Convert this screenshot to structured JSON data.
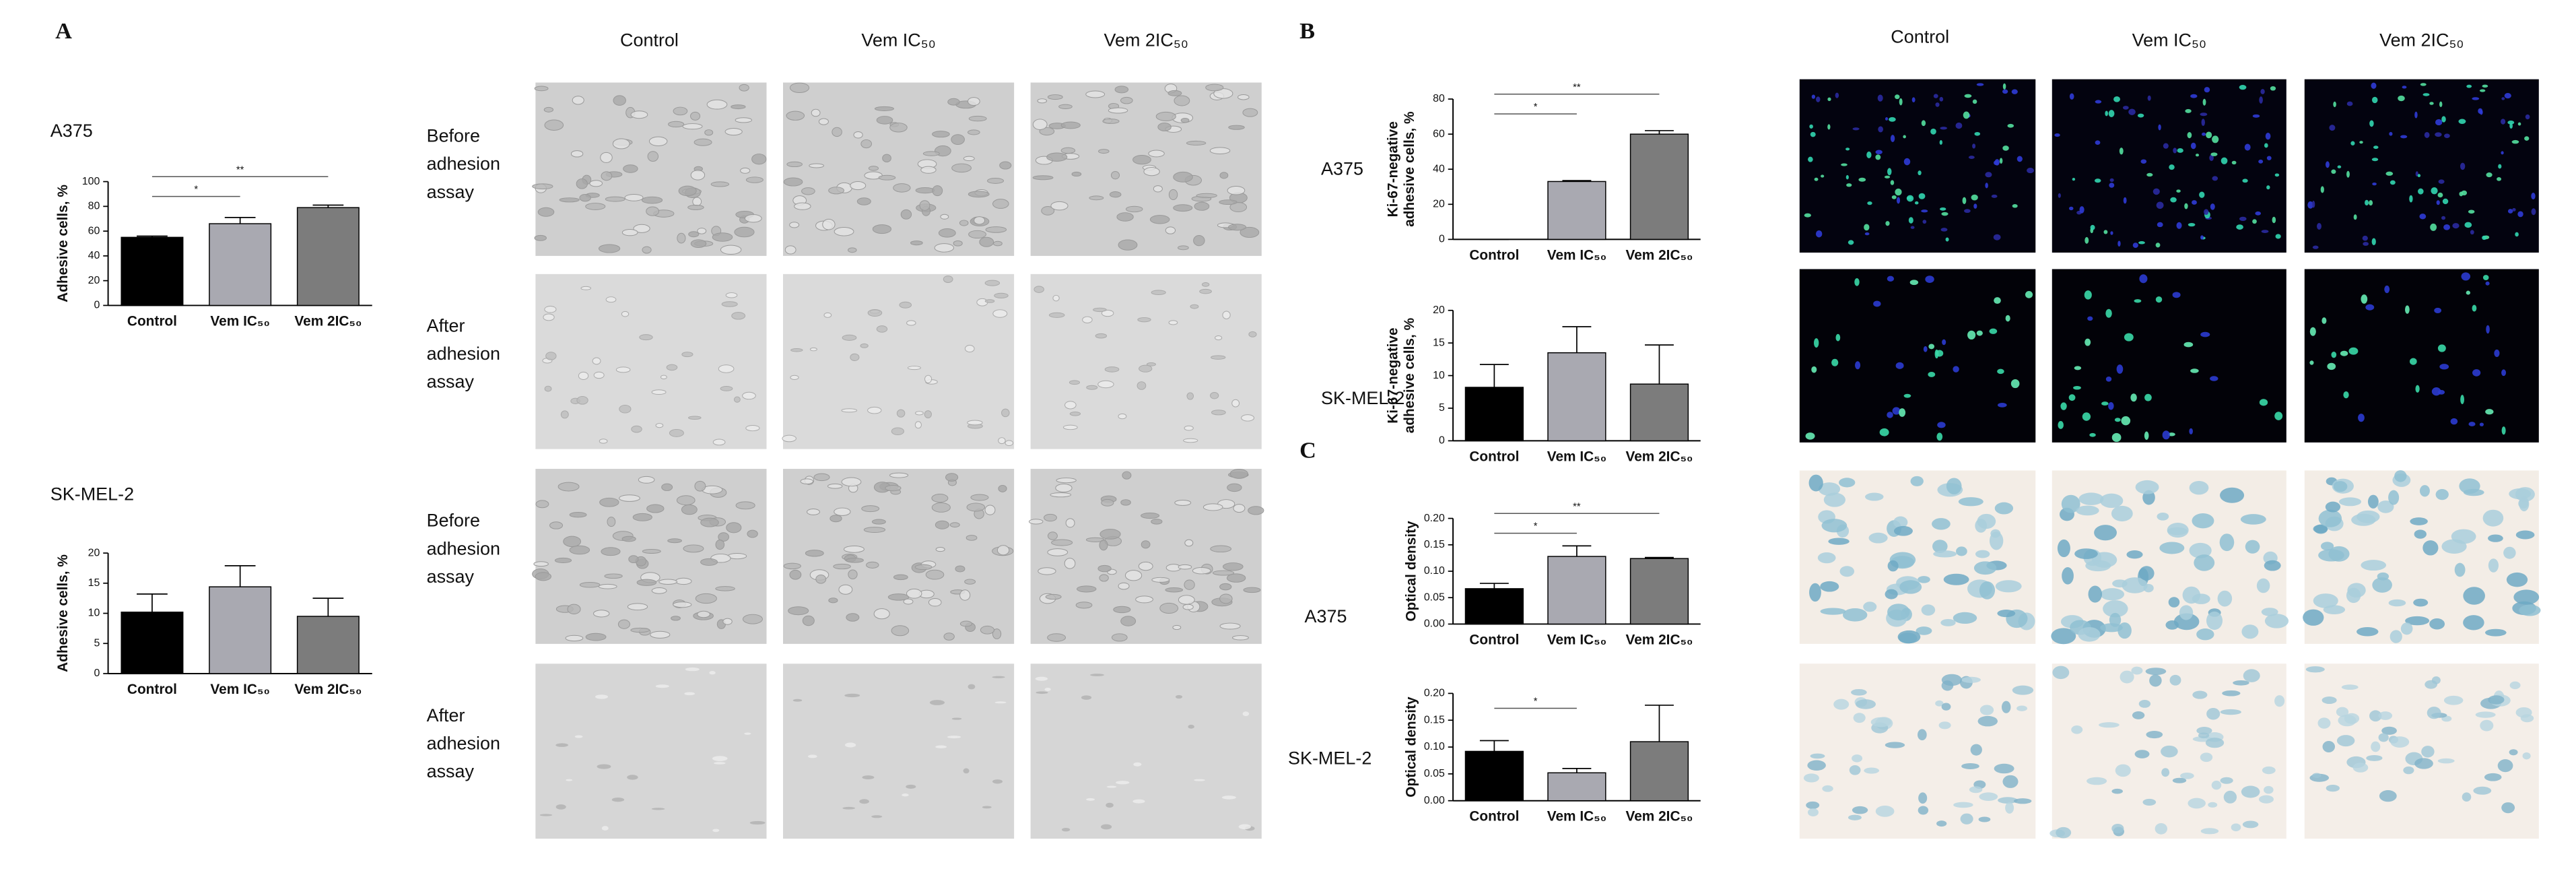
{
  "panel_letters": [
    "A",
    "B",
    "C"
  ],
  "column_headers": {
    "A": [
      "Control",
      "Vem IC₅₀",
      "Vem 2IC₅₀"
    ],
    "B": [
      "Control",
      "Vem IC₅₀",
      "Vem 2IC₅₀"
    ]
  },
  "image_row_labels": [
    [
      "Before",
      "adhesion",
      "assay"
    ],
    [
      "After",
      "adhesion",
      "assay"
    ],
    [
      "Before",
      "adhesion",
      "assay"
    ],
    [
      "After",
      "adhesion",
      "assay"
    ]
  ],
  "chart_data": [
    {
      "type": "bar",
      "title": "A375",
      "ylabel": [
        "Adhesive cells, %"
      ],
      "categories": [
        "Control",
        "Vem IC₅₀",
        "Vem 2IC₅₀"
      ],
      "values": [
        55,
        66,
        79
      ],
      "errors": [
        1,
        5,
        2
      ],
      "colors": [
        "#000000",
        "#a9a9b1",
        "#7c7c7c"
      ],
      "ylim": [
        0,
        100
      ],
      "yticks": [
        0,
        20,
        40,
        60,
        80,
        100
      ],
      "annotations": [
        {
          "label": "*",
          "from": 0,
          "to": 1
        },
        {
          "label": "**",
          "from": 0,
          "to": 2
        }
      ]
    },
    {
      "type": "bar",
      "title": "SK-MEL-2",
      "ylabel": [
        "Adhesive cells, %"
      ],
      "categories": [
        "Control",
        "Vem IC₅₀",
        "Vem 2IC₅₀"
      ],
      "values": [
        10.2,
        14.4,
        9.5
      ],
      "errors": [
        3,
        3.5,
        3
      ],
      "colors": [
        "#000000",
        "#a9a9b1",
        "#7c7c7c"
      ],
      "ylim": [
        0,
        20
      ],
      "yticks": [
        0,
        5,
        10,
        15,
        20
      ],
      "annotations": []
    },
    {
      "type": "bar",
      "title": "A375",
      "ylabel": [
        "Ki-67-negative",
        "adhesive cells, %"
      ],
      "categories": [
        "Control",
        "Vem IC₅₀",
        "Vem 2IC₅₀"
      ],
      "values": [
        0,
        33,
        60
      ],
      "errors": [
        0,
        0.5,
        2
      ],
      "colors": [
        "#000000",
        "#a9a9b1",
        "#7c7c7c"
      ],
      "ylim": [
        0,
        80
      ],
      "yticks": [
        0,
        20,
        40,
        60,
        80
      ],
      "annotations": [
        {
          "label": "*",
          "from": 1,
          "to": 0
        },
        {
          "label": "**",
          "from": 0,
          "to": 2
        }
      ]
    },
    {
      "type": "bar",
      "title": "SK-MEL-2",
      "ylabel": [
        "Ki-67-negative",
        "adhesive cells, %"
      ],
      "categories": [
        "Control",
        "Vem IC₅₀",
        "Vem 2IC₅₀"
      ],
      "values": [
        8.2,
        13.5,
        8.7
      ],
      "errors": [
        3.5,
        4,
        6
      ],
      "colors": [
        "#000000",
        "#a9a9b1",
        "#7c7c7c"
      ],
      "ylim": [
        0,
        20
      ],
      "yticks": [
        0,
        5,
        10,
        15,
        20
      ],
      "annotations": []
    },
    {
      "type": "bar",
      "title": "A375",
      "ylabel": [
        "Optical density"
      ],
      "categories": [
        "Control",
        "Vem IC₅₀",
        "Vem 2IC₅₀"
      ],
      "values": [
        0.067,
        0.128,
        0.124
      ],
      "errors": [
        0.01,
        0.02,
        0.002
      ],
      "colors": [
        "#000000",
        "#a9a9b1",
        "#7c7c7c"
      ],
      "ylim": [
        0,
        0.2
      ],
      "yticks": [
        {
          "value": 0,
          "label": "0.00"
        },
        {
          "value": 0.05,
          "label": "0.05"
        },
        {
          "value": 0.1,
          "label": "0.10"
        },
        {
          "value": 0.15,
          "label": "0.15"
        },
        {
          "value": 0.2,
          "label": "0.20"
        }
      ],
      "annotations": [
        {
          "label": "*",
          "from": 0,
          "to": 1
        },
        {
          "label": "**",
          "from": 0,
          "to": 2
        }
      ]
    },
    {
      "type": "bar",
      "title": "SK-MEL-2",
      "ylabel": [
        "Optical density"
      ],
      "categories": [
        "Control",
        "Vem IC₅₀",
        "Vem 2IC₅₀"
      ],
      "values": [
        0.092,
        0.052,
        0.11
      ],
      "errors": [
        0.02,
        0.008,
        0.068
      ],
      "colors": [
        "#000000",
        "#a9a9b1",
        "#7c7c7c"
      ],
      "ylim": [
        0,
        0.2
      ],
      "yticks": [
        {
          "value": 0,
          "label": "0.00"
        },
        {
          "value": 0.05,
          "label": "0.05"
        },
        {
          "value": 0.1,
          "label": "0.10"
        },
        {
          "value": 0.15,
          "label": "0.15"
        },
        {
          "value": 0.2,
          "label": "0.20"
        }
      ],
      "annotations": [
        {
          "label": "*",
          "from": 0,
          "to": 1
        }
      ]
    }
  ]
}
